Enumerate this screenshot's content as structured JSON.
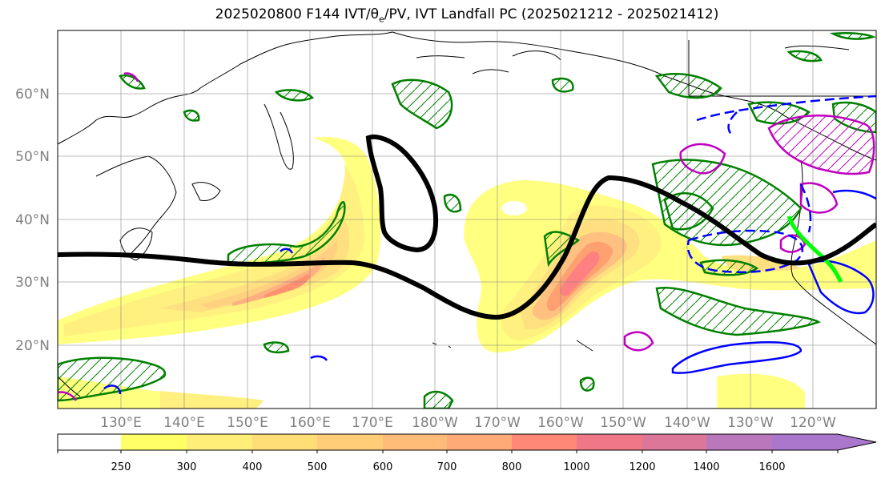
{
  "title": {
    "prefix": "2025020800 F144 IVT/",
    "theta": "θ",
    "theta_sub": "e",
    "suffix": "/PV, IVT Landfall PC (2025021212 - 2025021412)"
  },
  "map": {
    "lon_labels": [
      "130°E",
      "140°E",
      "150°E",
      "160°E",
      "170°E",
      "180°W",
      "170°W",
      "160°W",
      "150°W",
      "140°W",
      "130°W",
      "120°W"
    ],
    "lat_labels": [
      "60°N",
      "50°N",
      "40°N",
      "30°N",
      "20°N"
    ],
    "colors": {
      "ivt_levels": [
        "#ffff80",
        "#fff080",
        "#ffe080",
        "#ffd080",
        "#ffc080",
        "#ffa070",
        "#ff9070",
        "#f08080",
        "#e08090",
        "#c080b0",
        "#a080c0"
      ],
      "pc_line": "#000000",
      "pv_contour": "#008000",
      "theta_solid": "#0000ff",
      "theta_dashed": "#0000ff",
      "magenta_contour": "#c000c0",
      "landfall": "#00ff00"
    }
  },
  "colorbar": {
    "ticks": [
      "250",
      "300",
      "400",
      "500",
      "600",
      "700",
      "800",
      "1000",
      "1200",
      "1400",
      "1600"
    ],
    "colors": [
      "#ffff66",
      "#ffee77",
      "#ffdd77",
      "#ffcc77",
      "#ffbb77",
      "#ffaa77",
      "#ff8877",
      "#ee7788",
      "#dd7799",
      "#bb77bb",
      "#aa77cc"
    ]
  }
}
